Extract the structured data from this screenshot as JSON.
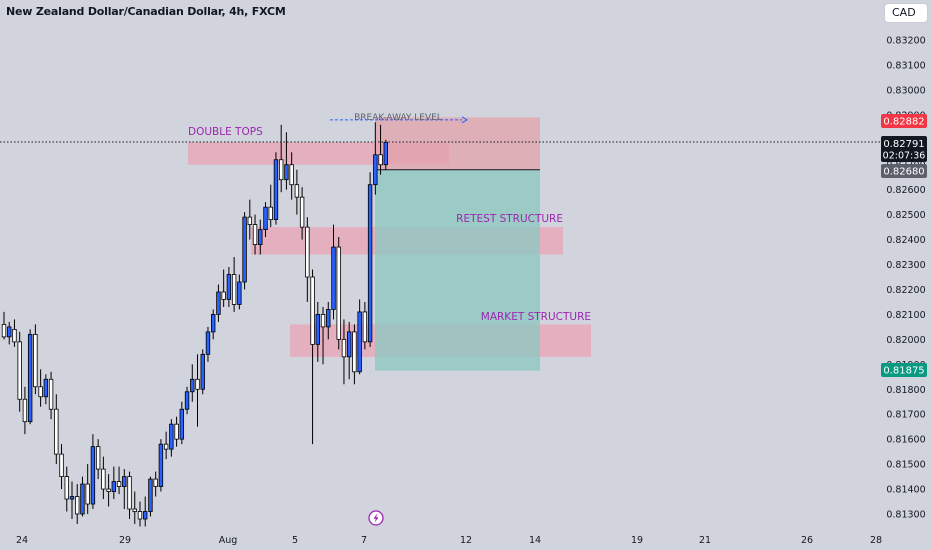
{
  "header": {
    "symbol_title": "New Zealand Dollar/Canadian Dollar, 4h, FXCM",
    "currency": "CAD"
  },
  "price_badges": {
    "stop": "0.82882",
    "current_price": "0.82791",
    "countdown": "02:07:36",
    "entry": "0.82680",
    "target": "0.81875"
  },
  "annotations": {
    "double_tops": "DOUBLE TOPS",
    "break_away": "BREAK-AWAY LEVEL",
    "retest": "RETEST STRUCTURE",
    "market": "MARKET STRUCTURE"
  },
  "colors": {
    "background": "#d1d4dc",
    "bull_candle": "#2962ff",
    "bear_candle": "#ffffff",
    "wick": "#000000",
    "zone_fill": "#f48fa6",
    "stop_zone": "#e3a3ac",
    "target_zone": "#8fc7c2",
    "label_purple": "#9c27b0",
    "badge_red": "#f23645",
    "badge_green": "#089981",
    "badge_dark": "#131722",
    "badge_gray": "#5d606b"
  },
  "event_icon": "lightning-icon",
  "chart_data": {
    "type": "candlestick",
    "title": "New Zealand Dollar/Canadian Dollar, 4h, FXCM",
    "xlabel": "",
    "ylabel": "",
    "ylim": [
      0.8125,
      0.8335
    ],
    "y_ticks": [
      "0.83200",
      "0.83100",
      "0.83000",
      "0.82900",
      "0.82800",
      "0.82700",
      "0.82600",
      "0.82500",
      "0.82400",
      "0.82300",
      "0.82200",
      "0.82100",
      "0.82000",
      "0.81900",
      "0.81800",
      "0.81700",
      "0.81600",
      "0.81500",
      "0.81400",
      "0.81300"
    ],
    "x_ticks": [
      "24",
      "29",
      "Aug",
      "5",
      "7",
      "12",
      "14",
      "19",
      "21",
      "26",
      "28"
    ],
    "grid": false,
    "last_price": 0.82791,
    "candles": [
      {
        "o": 0.8206,
        "h": 0.8211,
        "c": 0.8201,
        "l": 0.82
      },
      {
        "o": 0.8201,
        "h": 0.8207,
        "c": 0.8205,
        "l": 0.8198
      },
      {
        "o": 0.8204,
        "h": 0.8208,
        "c": 0.8199,
        "l": 0.8197
      },
      {
        "o": 0.8199,
        "h": 0.8203,
        "c": 0.8176,
        "l": 0.8171
      },
      {
        "o": 0.8176,
        "h": 0.8181,
        "c": 0.8167,
        "l": 0.8162
      },
      {
        "o": 0.8167,
        "h": 0.8204,
        "c": 0.8202,
        "l": 0.8166
      },
      {
        "o": 0.8202,
        "h": 0.8206,
        "c": 0.8181,
        "l": 0.8178
      },
      {
        "o": 0.8181,
        "h": 0.8188,
        "c": 0.8177,
        "l": 0.8173
      },
      {
        "o": 0.8177,
        "h": 0.8186,
        "c": 0.8184,
        "l": 0.8174
      },
      {
        "o": 0.8184,
        "h": 0.8187,
        "c": 0.8172,
        "l": 0.8168
      },
      {
        "o": 0.8172,
        "h": 0.8178,
        "c": 0.8154,
        "l": 0.815
      },
      {
        "o": 0.8154,
        "h": 0.8158,
        "c": 0.8145,
        "l": 0.814
      },
      {
        "o": 0.8145,
        "h": 0.8149,
        "c": 0.8136,
        "l": 0.8131
      },
      {
        "o": 0.8136,
        "h": 0.8143,
        "c": 0.8137,
        "l": 0.8128
      },
      {
        "o": 0.8137,
        "h": 0.8142,
        "c": 0.813,
        "l": 0.8126
      },
      {
        "o": 0.813,
        "h": 0.8145,
        "c": 0.8142,
        "l": 0.8129
      },
      {
        "o": 0.8142,
        "h": 0.815,
        "c": 0.8134,
        "l": 0.813
      },
      {
        "o": 0.8134,
        "h": 0.8162,
        "c": 0.8157,
        "l": 0.8132
      },
      {
        "o": 0.8157,
        "h": 0.816,
        "c": 0.8148,
        "l": 0.8144
      },
      {
        "o": 0.8148,
        "h": 0.8153,
        "c": 0.814,
        "l": 0.8136
      },
      {
        "o": 0.814,
        "h": 0.8146,
        "c": 0.8139,
        "l": 0.8133
      },
      {
        "o": 0.8139,
        "h": 0.8149,
        "c": 0.8143,
        "l": 0.8136
      },
      {
        "o": 0.8143,
        "h": 0.8149,
        "c": 0.8141,
        "l": 0.8138
      },
      {
        "o": 0.8141,
        "h": 0.8148,
        "c": 0.8145,
        "l": 0.8132
      },
      {
        "o": 0.8145,
        "h": 0.8147,
        "c": 0.8132,
        "l": 0.8128
      },
      {
        "o": 0.8132,
        "h": 0.8139,
        "c": 0.8131,
        "l": 0.8126
      },
      {
        "o": 0.8131,
        "h": 0.8135,
        "c": 0.8128,
        "l": 0.8125
      },
      {
        "o": 0.8128,
        "h": 0.8137,
        "c": 0.8131,
        "l": 0.8125
      },
      {
        "o": 0.8131,
        "h": 0.8145,
        "c": 0.8144,
        "l": 0.8129
      },
      {
        "o": 0.8144,
        "h": 0.8147,
        "c": 0.8141,
        "l": 0.8137
      },
      {
        "o": 0.8141,
        "h": 0.816,
        "c": 0.8158,
        "l": 0.8139
      },
      {
        "o": 0.8158,
        "h": 0.8163,
        "c": 0.8156,
        "l": 0.8152
      },
      {
        "o": 0.8156,
        "h": 0.8168,
        "c": 0.8166,
        "l": 0.8153
      },
      {
        "o": 0.8166,
        "h": 0.8169,
        "c": 0.816,
        "l": 0.8157
      },
      {
        "o": 0.816,
        "h": 0.8175,
        "c": 0.8172,
        "l": 0.8158
      },
      {
        "o": 0.8172,
        "h": 0.8181,
        "c": 0.8179,
        "l": 0.817
      },
      {
        "o": 0.8179,
        "h": 0.819,
        "c": 0.8184,
        "l": 0.8175
      },
      {
        "o": 0.8184,
        "h": 0.8194,
        "c": 0.818,
        "l": 0.8165
      },
      {
        "o": 0.818,
        "h": 0.8196,
        "c": 0.8194,
        "l": 0.8178
      },
      {
        "o": 0.8194,
        "h": 0.8205,
        "c": 0.8203,
        "l": 0.8191
      },
      {
        "o": 0.8203,
        "h": 0.8212,
        "c": 0.821,
        "l": 0.82
      },
      {
        "o": 0.821,
        "h": 0.8222,
        "c": 0.8219,
        "l": 0.8207
      },
      {
        "o": 0.8219,
        "h": 0.8228,
        "c": 0.8216,
        "l": 0.8213
      },
      {
        "o": 0.8216,
        "h": 0.8229,
        "c": 0.8226,
        "l": 0.8213
      },
      {
        "o": 0.8226,
        "h": 0.8233,
        "c": 0.8214,
        "l": 0.8211
      },
      {
        "o": 0.8214,
        "h": 0.8226,
        "c": 0.8223,
        "l": 0.8212
      },
      {
        "o": 0.8223,
        "h": 0.8251,
        "c": 0.8249,
        "l": 0.822
      },
      {
        "o": 0.8249,
        "h": 0.8256,
        "c": 0.8246,
        "l": 0.824
      },
      {
        "o": 0.8246,
        "h": 0.825,
        "c": 0.8238,
        "l": 0.8234
      },
      {
        "o": 0.8238,
        "h": 0.8248,
        "c": 0.8244,
        "l": 0.8234
      },
      {
        "o": 0.8244,
        "h": 0.8255,
        "c": 0.8253,
        "l": 0.8241
      },
      {
        "o": 0.8253,
        "h": 0.8262,
        "c": 0.8248,
        "l": 0.8245
      },
      {
        "o": 0.8248,
        "h": 0.8275,
        "c": 0.8272,
        "l": 0.8246
      },
      {
        "o": 0.8272,
        "h": 0.8286,
        "c": 0.8264,
        "l": 0.8259
      },
      {
        "o": 0.8264,
        "h": 0.8283,
        "c": 0.827,
        "l": 0.826
      },
      {
        "o": 0.827,
        "h": 0.8275,
        "c": 0.8262,
        "l": 0.8256
      },
      {
        "o": 0.8262,
        "h": 0.8268,
        "c": 0.8257,
        "l": 0.825
      },
      {
        "o": 0.8257,
        "h": 0.8261,
        "c": 0.8245,
        "l": 0.824
      },
      {
        "o": 0.8245,
        "h": 0.8249,
        "c": 0.8225,
        "l": 0.8215
      },
      {
        "o": 0.8225,
        "h": 0.8228,
        "c": 0.8198,
        "l": 0.8158
      },
      {
        "o": 0.8198,
        "h": 0.8215,
        "c": 0.821,
        "l": 0.8191
      },
      {
        "o": 0.821,
        "h": 0.8213,
        "c": 0.8205,
        "l": 0.819
      },
      {
        "o": 0.8205,
        "h": 0.8215,
        "c": 0.8212,
        "l": 0.82
      },
      {
        "o": 0.8212,
        "h": 0.8246,
        "c": 0.8237,
        "l": 0.8208
      },
      {
        "o": 0.8237,
        "h": 0.8241,
        "c": 0.82,
        "l": 0.8196
      },
      {
        "o": 0.82,
        "h": 0.8208,
        "c": 0.8193,
        "l": 0.8182
      },
      {
        "o": 0.8193,
        "h": 0.8207,
        "c": 0.8203,
        "l": 0.8184
      },
      {
        "o": 0.8203,
        "h": 0.8206,
        "c": 0.8187,
        "l": 0.8182
      },
      {
        "o": 0.8187,
        "h": 0.8216,
        "c": 0.8211,
        "l": 0.8186
      },
      {
        "o": 0.8211,
        "h": 0.8215,
        "c": 0.8199,
        "l": 0.8196
      },
      {
        "o": 0.8199,
        "h": 0.8267,
        "c": 0.8262,
        "l": 0.8197
      },
      {
        "o": 0.8262,
        "h": 0.8287,
        "c": 0.8274,
        "l": 0.8258
      },
      {
        "o": 0.8274,
        "h": 0.8286,
        "c": 0.827,
        "l": 0.8266
      },
      {
        "o": 0.827,
        "h": 0.828,
        "c": 0.8279,
        "l": 0.8268
      }
    ],
    "zones": [
      {
        "label": "DOUBLE TOPS",
        "top": 0.8279,
        "bottom": 0.827
      },
      {
        "label": "RETEST STRUCTURE",
        "top": 0.8245,
        "bottom": 0.8234
      },
      {
        "label": "MARKET STRUCTURE",
        "top": 0.8206,
        "bottom": 0.8193
      }
    ],
    "trade_setup": {
      "entry": 0.8268,
      "stop": 0.82882,
      "target": 0.81875
    },
    "break_away_level": 0.8288
  }
}
